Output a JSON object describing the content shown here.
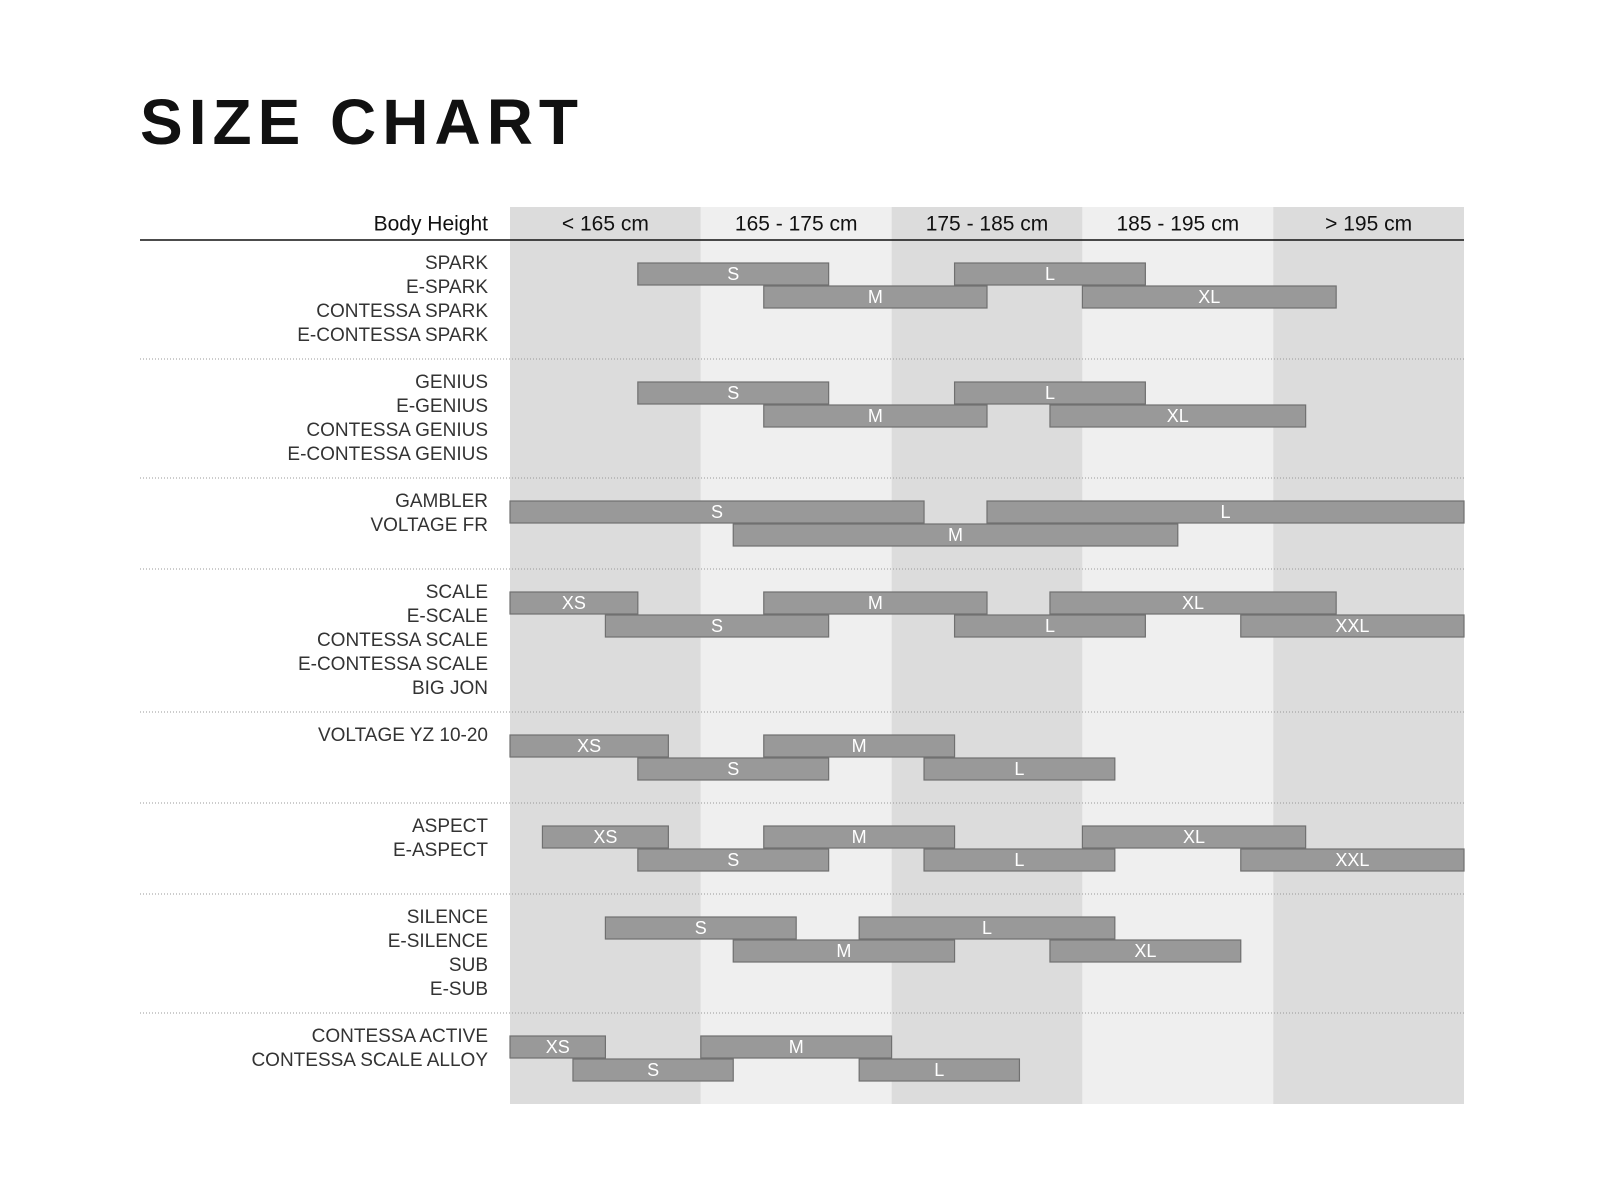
{
  "chart_data": {
    "type": "range",
    "title": "SIZE CHART",
    "row_header": "Body Height",
    "categories": [
      "< 165 cm",
      "165 - 175 cm",
      "175 - 185 cm",
      "185 - 195 cm",
      "> 195 cm"
    ],
    "xlim": [
      155,
      205
    ],
    "groups": [
      {
        "models": [
          "SPARK",
          "E-SPARK",
          "CONTESSA SPARK",
          "E-CONTESSA SPARK"
        ],
        "rows": [
          [
            {
              "size": "S",
              "start": 161.7,
              "end": 171.7
            },
            {
              "size": "L",
              "start": 178.3,
              "end": 188.3
            }
          ],
          [
            {
              "size": "M",
              "start": 168.3,
              "end": 180
            },
            {
              "size": "XL",
              "start": 185,
              "end": 198.3
            }
          ]
        ]
      },
      {
        "models": [
          "GENIUS",
          "E-GENIUS",
          "CONTESSA GENIUS",
          "E-CONTESSA GENIUS"
        ],
        "rows": [
          [
            {
              "size": "S",
              "start": 161.7,
              "end": 171.7
            },
            {
              "size": "L",
              "start": 178.3,
              "end": 188.3
            }
          ],
          [
            {
              "size": "M",
              "start": 168.3,
              "end": 180
            },
            {
              "size": "XL",
              "start": 183.3,
              "end": 196.7
            }
          ]
        ]
      },
      {
        "models": [
          "GAMBLER",
          "VOLTAGE FR"
        ],
        "rows": [
          [
            {
              "size": "S",
              "start": 155,
              "end": 176.7
            },
            {
              "size": "L",
              "start": 180,
              "end": 205
            }
          ],
          [
            {
              "size": "M",
              "start": 166.7,
              "end": 190
            }
          ]
        ]
      },
      {
        "models": [
          "SCALE",
          "E-SCALE",
          "CONTESSA SCALE",
          "E-CONTESSA SCALE",
          "BIG JON"
        ],
        "rows": [
          [
            {
              "size": "XS",
              "start": 155,
              "end": 161.7
            },
            {
              "size": "M",
              "start": 168.3,
              "end": 180
            },
            {
              "size": "XL",
              "start": 183.3,
              "end": 198.3
            }
          ],
          [
            {
              "size": "S",
              "start": 160,
              "end": 171.7
            },
            {
              "size": "L",
              "start": 178.3,
              "end": 188.3
            },
            {
              "size": "XXL",
              "start": 193.3,
              "end": 205
            }
          ]
        ]
      },
      {
        "models": [
          "VOLTAGE YZ 10-20"
        ],
        "rows": [
          [
            {
              "size": "XS",
              "start": 155,
              "end": 163.3
            },
            {
              "size": "M",
              "start": 168.3,
              "end": 178.3
            }
          ],
          [
            {
              "size": "S",
              "start": 161.7,
              "end": 171.7
            },
            {
              "size": "L",
              "start": 176.7,
              "end": 186.7
            }
          ]
        ]
      },
      {
        "models": [
          "ASPECT",
          "E-ASPECT"
        ],
        "rows": [
          [
            {
              "size": "XS",
              "start": 156.7,
              "end": 163.3
            },
            {
              "size": "M",
              "start": 168.3,
              "end": 178.3
            },
            {
              "size": "XL",
              "start": 185,
              "end": 196.7
            }
          ],
          [
            {
              "size": "S",
              "start": 161.7,
              "end": 171.7
            },
            {
              "size": "L",
              "start": 176.7,
              "end": 186.7
            },
            {
              "size": "XXL",
              "start": 193.3,
              "end": 205
            }
          ]
        ]
      },
      {
        "models": [
          "SILENCE",
          "E-SILENCE",
          "SUB",
          "E-SUB"
        ],
        "rows": [
          [
            {
              "size": "S",
              "start": 160,
              "end": 170
            },
            {
              "size": "L",
              "start": 173.3,
              "end": 186.7
            }
          ],
          [
            {
              "size": "M",
              "start": 166.7,
              "end": 178.3
            },
            {
              "size": "XL",
              "start": 183.3,
              "end": 193.3
            }
          ]
        ]
      },
      {
        "models": [
          "CONTESSA ACTIVE",
          "CONTESSA SCALE ALLOY"
        ],
        "rows": [
          [
            {
              "size": "XS",
              "start": 155,
              "end": 160
            },
            {
              "size": "M",
              "start": 165,
              "end": 175
            }
          ],
          [
            {
              "size": "S",
              "start": 158.3,
              "end": 166.7
            },
            {
              "size": "L",
              "start": 173.3,
              "end": 181.7
            }
          ]
        ]
      }
    ]
  }
}
